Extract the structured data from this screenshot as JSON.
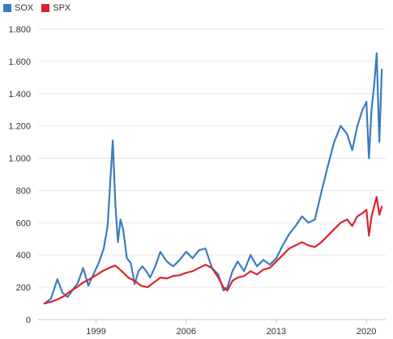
{
  "chart_data": {
    "type": "line",
    "title": "",
    "xlabel": "",
    "ylabel": "",
    "xlim": [
      1994.5,
      2021.5
    ],
    "ylim": [
      0,
      1800
    ],
    "y_ticks": [
      0,
      200,
      400,
      600,
      800,
      1000,
      1200,
      1400,
      1600,
      1800
    ],
    "y_tick_labels": [
      "0",
      "200",
      "400",
      "600",
      "800",
      "1.000",
      "1.200",
      "1.400",
      "1.600",
      "1.800"
    ],
    "x_ticks": [
      1999,
      2006,
      2013,
      2020
    ],
    "x_tick_labels": [
      "1999",
      "2006",
      "2013",
      "2020"
    ],
    "grid": "horizontal",
    "legend_position": "top-left",
    "series": [
      {
        "name": "SOX",
        "color": "#3a7dbf",
        "x": [
          1995.0,
          1995.5,
          1996.0,
          1996.4,
          1996.8,
          1997.2,
          1997.6,
          1998.0,
          1998.4,
          1998.8,
          1999.2,
          1999.6,
          1999.9,
          2000.1,
          2000.3,
          2000.5,
          2000.7,
          2000.9,
          2001.1,
          2001.4,
          2001.7,
          2002.0,
          2002.3,
          2002.6,
          2002.9,
          2003.2,
          2003.6,
          2004.0,
          2004.5,
          2005.0,
          2005.5,
          2006.0,
          2006.5,
          2007.0,
          2007.5,
          2008.0,
          2008.5,
          2008.9,
          2009.2,
          2009.6,
          2010.0,
          2010.5,
          2011.0,
          2011.5,
          2012.0,
          2012.5,
          2013.0,
          2013.5,
          2014.0,
          2014.5,
          2015.0,
          2015.5,
          2016.0,
          2016.5,
          2017.0,
          2017.5,
          2018.0,
          2018.5,
          2018.9,
          2019.3,
          2019.7,
          2020.0,
          2020.2,
          2020.4,
          2020.6,
          2020.8,
          2021.0,
          2021.2
        ],
        "values": [
          100,
          130,
          250,
          165,
          140,
          185,
          230,
          320,
          210,
          280,
          350,
          440,
          580,
          850,
          1110,
          720,
          480,
          620,
          560,
          380,
          350,
          220,
          300,
          330,
          300,
          260,
          330,
          420,
          360,
          330,
          370,
          420,
          380,
          430,
          440,
          320,
          280,
          180,
          200,
          300,
          360,
          300,
          400,
          330,
          370,
          340,
          380,
          460,
          530,
          580,
          640,
          600,
          620,
          790,
          950,
          1100,
          1200,
          1150,
          1050,
          1200,
          1300,
          1350,
          1000,
          1300,
          1450,
          1650,
          1100,
          1550
        ]
      },
      {
        "name": "SPX",
        "color": "#d9242b",
        "x": [
          1995.0,
          1995.5,
          1996.0,
          1996.5,
          1997.0,
          1997.5,
          1998.0,
          1998.5,
          1999.0,
          1999.5,
          2000.0,
          2000.5,
          2001.0,
          2001.5,
          2002.0,
          2002.5,
          2003.0,
          2003.5,
          2004.0,
          2004.5,
          2005.0,
          2005.5,
          2006.0,
          2006.5,
          2007.0,
          2007.5,
          2008.0,
          2008.5,
          2008.9,
          2009.2,
          2009.6,
          2010.0,
          2010.5,
          2011.0,
          2011.5,
          2012.0,
          2012.5,
          2013.0,
          2013.5,
          2014.0,
          2014.5,
          2015.0,
          2015.5,
          2016.0,
          2016.5,
          2017.0,
          2017.5,
          2018.0,
          2018.5,
          2018.9,
          2019.3,
          2019.7,
          2020.0,
          2020.2,
          2020.4,
          2020.6,
          2020.8,
          2021.0,
          2021.2
        ],
        "values": [
          100,
          110,
          125,
          145,
          175,
          200,
          230,
          250,
          275,
          300,
          320,
          335,
          300,
          260,
          240,
          210,
          200,
          230,
          260,
          255,
          270,
          275,
          290,
          300,
          320,
          340,
          320,
          260,
          200,
          180,
          240,
          260,
          270,
          300,
          280,
          310,
          320,
          360,
          400,
          440,
          460,
          480,
          460,
          450,
          480,
          520,
          560,
          600,
          620,
          580,
          640,
          660,
          680,
          520,
          640,
          700,
          760,
          650,
          700
        ]
      }
    ]
  }
}
